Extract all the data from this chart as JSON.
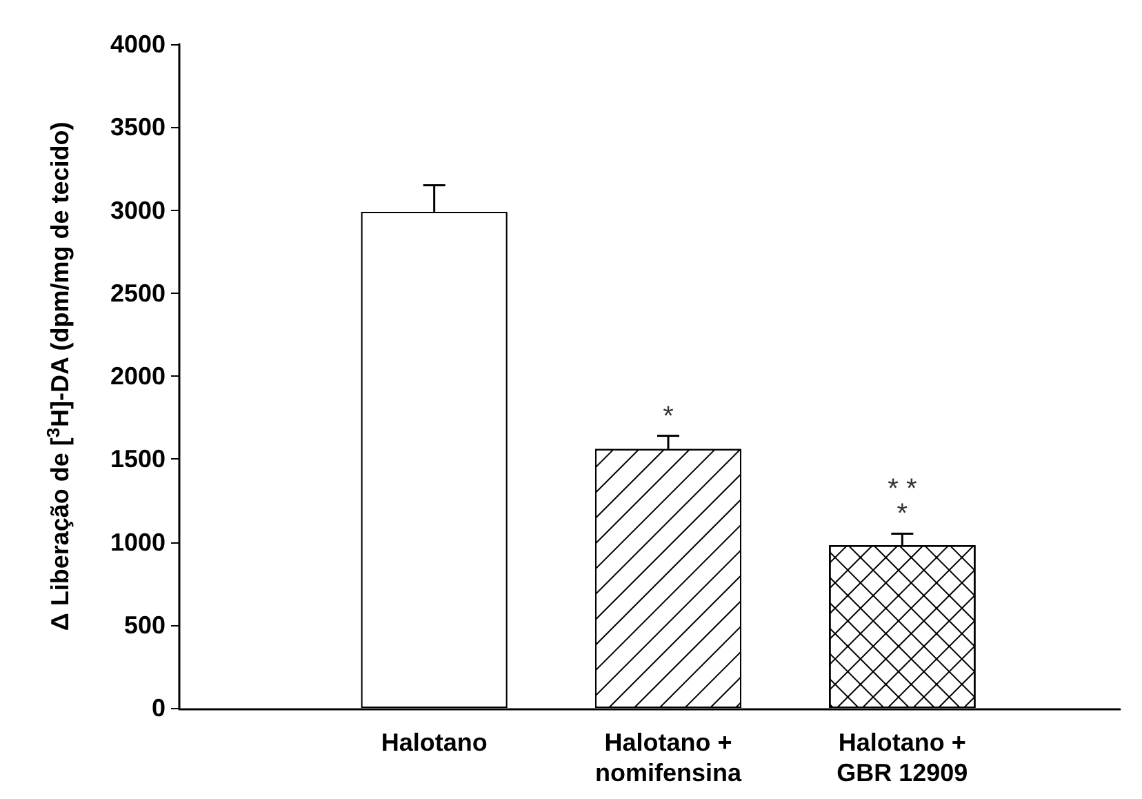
{
  "chart_data": {
    "type": "bar",
    "ylabel": "Δ Liberação de [$^{3}$H]-DA (dpm/mg de tecido)",
    "categories": [
      "Halotano",
      "Halotano +\nnomifensina",
      "Halotano +\nGBR 12909"
    ],
    "values": [
      2990,
      1560,
      980
    ],
    "errors": [
      160,
      80,
      70
    ],
    "colors": [
      "#ffffff",
      "#ffffff",
      "#ffffff"
    ],
    "ylim": [
      0,
      4000
    ],
    "yticks": [
      0,
      500,
      1000,
      1500,
      2000,
      2500,
      3000,
      3500,
      4000
    ],
    "grid": false,
    "annotations": [
      {
        "text": "*",
        "x": "Halotano +\nnomifensina",
        "y": 1560
      },
      {
        "text": "*",
        "x": "Halotano +\nGBR 12909",
        "y": 980
      },
      {
        "text": "* *",
        "x": "Halotano +\nGBR 12909",
        "y": 980
      }
    ]
  }
}
